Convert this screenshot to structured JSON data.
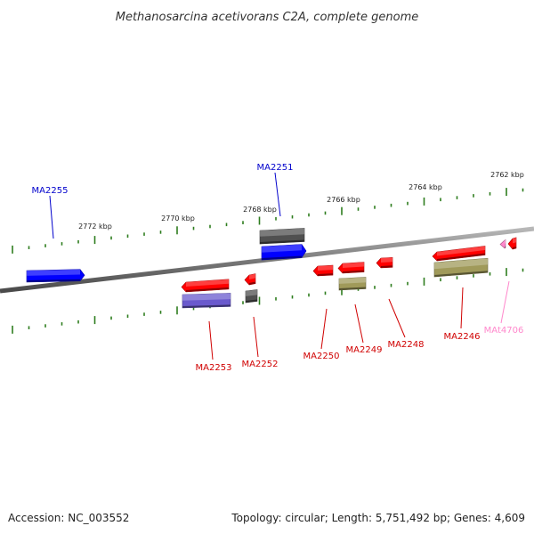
{
  "title": "Methanosarcina acetivorans C2A, complete genome",
  "footer": {
    "accession": "Accession: NC_003552",
    "summary": "Topology: circular; Length: 5,751,492 bp; Genes: 4,609"
  },
  "scale_labels": [
    "2772 kbp",
    "2770 kbp",
    "2768 kbp",
    "2766 kbp",
    "2764 kbp",
    "2762 kbp"
  ],
  "gene_labels": {
    "MA2255": "MA2255",
    "MA2251": "MA2251",
    "MA2253": "MA2253",
    "MA2252": "MA2252",
    "MA2250": "MA2250",
    "MA2249": "MA2249",
    "MA2248": "MA2248",
    "MA2246": "MA2246",
    "MAt4706": "MAt4706"
  },
  "colors": {
    "backbone": "#808080",
    "tick": "#2e7d1e",
    "gene_red": "#ff0000",
    "gene_blue": "#0000ff",
    "gene_gray": "#505050",
    "gene_purple": "#6a5acd",
    "gene_olive": "#a09a5a",
    "gene_pink": "#ff88cc",
    "label_red": "#d00000",
    "label_blue": "#0000cc",
    "label_pink": "#ff88cc"
  }
}
